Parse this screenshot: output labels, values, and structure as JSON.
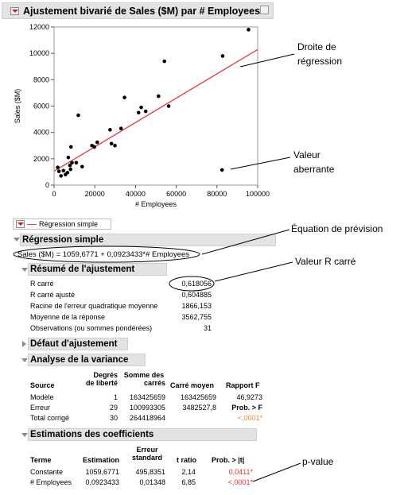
{
  "window": {
    "title": "Ajustement bivarié de Sales ($M) par # Employees"
  },
  "chart_data": {
    "type": "scatter",
    "xlabel": "# Employees",
    "ylabel": "Sales ($M)",
    "xlim": [
      0,
      100000
    ],
    "ylim": [
      0,
      12000
    ],
    "x_ticks": [
      "0",
      "20000",
      "40000",
      "60000",
      "80000",
      "100000"
    ],
    "y_ticks": [
      "0",
      "2000",
      "4000",
      "6000",
      "8000",
      "10000",
      "12000"
    ],
    "grid": false,
    "points": [
      [
        1800,
        1350
      ],
      [
        2400,
        1050
      ],
      [
        3400,
        700
      ],
      [
        4600,
        1100
      ],
      [
        5600,
        800
      ],
      [
        6600,
        950
      ],
      [
        7000,
        2100
      ],
      [
        7800,
        1500
      ],
      [
        8100,
        1200
      ],
      [
        8300,
        2900
      ],
      [
        8800,
        1700
      ],
      [
        10900,
        1700
      ],
      [
        11900,
        5300
      ],
      [
        13800,
        1400
      ],
      [
        18600,
        3000
      ],
      [
        19800,
        2900
      ],
      [
        21200,
        3250
      ],
      [
        27500,
        4200
      ],
      [
        28200,
        3150
      ],
      [
        29900,
        3000
      ],
      [
        32900,
        4300
      ],
      [
        34600,
        6650
      ],
      [
        41500,
        5500
      ],
      [
        42800,
        5900
      ],
      [
        51300,
        6750
      ],
      [
        54200,
        9400
      ],
      [
        56300,
        6000
      ],
      [
        82800,
        9800
      ],
      [
        82500,
        1150
      ],
      [
        95500,
        11800
      ],
      [
        45000,
        5600
      ]
    ],
    "regression_line": {
      "intercept": 1059.6771,
      "slope": 0.0923433,
      "color": "#d8454e"
    }
  },
  "legend": {
    "label": "Régression simple"
  },
  "regression": {
    "header": "Régression simple",
    "equation": "Sales ($M) = 1059,6771 + 0,0923433*# Employees"
  },
  "summary": {
    "header": "Résumé de l'ajustement",
    "rows": [
      {
        "label": "R carré",
        "value": "0,618056"
      },
      {
        "label": "R carré ajusté",
        "value": "0,604885"
      },
      {
        "label": "Racine de l'erreur quadratique moyenne",
        "value": "1866,153"
      },
      {
        "label": "Moyenne de la réponse",
        "value": "3562,755"
      },
      {
        "label": "Observations (ou sommes pondérées)",
        "value": "31"
      }
    ]
  },
  "lack_of_fit": {
    "header": "Défaut d'ajustement"
  },
  "anova": {
    "header": "Analyse de la variance",
    "col_source": "Source",
    "col_df": [
      "Degrés",
      "de liberté"
    ],
    "col_ss": [
      "Somme des",
      "carrés"
    ],
    "col_ms": "Carré moyen",
    "col_f": "Rapport F",
    "rows": [
      {
        "source": "Modèle",
        "df": "1",
        "ss": "163425659",
        "ms": "163425659",
        "f": "46,9273"
      },
      {
        "source": "Erreur",
        "df": "29",
        "ss": "100993305",
        "ms": "3482527,8",
        "f": "Prob. > F"
      },
      {
        "source": "Total corrigé",
        "df": "30",
        "ss": "264418964",
        "ms": "",
        "f": "<,0001*"
      }
    ]
  },
  "coefficients": {
    "header": "Estimations des coefficients",
    "col_term": "Terme",
    "col_est": "Estimation",
    "col_se": [
      "Erreur",
      "standard"
    ],
    "col_t": "t ratio",
    "col_p": "Prob. > |t|",
    "rows": [
      {
        "term": "Constante",
        "est": "1059,6771",
        "se": "495,8351",
        "t": "2,14",
        "p": "0,0411*"
      },
      {
        "term": "# Employees",
        "est": "0,0923433",
        "se": "0,01348",
        "t": "6,85",
        "p": "<,0001*"
      }
    ]
  },
  "callouts": {
    "regression_line": [
      "Droite de",
      "régression"
    ],
    "outlier": [
      "Valeur",
      "aberrante"
    ],
    "equation": "Équation de prévision",
    "rsq": "Valeur R carré",
    "pvalue": "p-value"
  }
}
